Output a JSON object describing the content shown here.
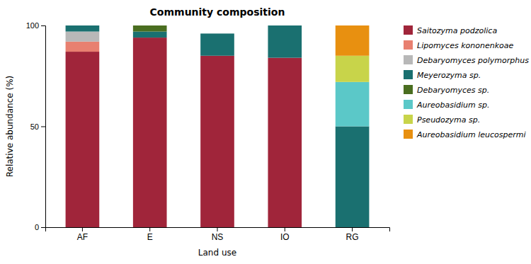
{
  "chart_data": {
    "type": "bar",
    "stacked": true,
    "title": "Community composition",
    "x_label": "Land use",
    "y_label": "Relative abundance (%)",
    "categories": [
      "AF",
      "E",
      "NS",
      "IO",
      "RG"
    ],
    "series": [
      {
        "name": "Saitozyma podzolica",
        "color": "#a0253a",
        "values": [
          87,
          94,
          85,
          84,
          0
        ]
      },
      {
        "name": "Lipomyces kononenkoae",
        "color": "#e88070",
        "values": [
          5,
          0,
          0,
          0,
          0
        ]
      },
      {
        "name": "Debaryomyces polymorphus",
        "color": "#b8b8b8",
        "values": [
          5,
          0,
          0,
          0,
          0
        ]
      },
      {
        "name": "Meyerozyma sp.",
        "color": "#1a7070",
        "values": [
          3,
          3,
          11,
          16,
          50
        ]
      },
      {
        "name": "Debaryomyces sp.",
        "color": "#4a6e20",
        "values": [
          0,
          3,
          0,
          0,
          0
        ]
      },
      {
        "name": "Aureobasidium sp.",
        "color": "#5bc8c8",
        "values": [
          0,
          0,
          0,
          0,
          22
        ]
      },
      {
        "name": "Pseudozyma sp.",
        "color": "#c8d44a",
        "values": [
          0,
          0,
          0,
          0,
          13
        ]
      },
      {
        "name": "Aureobasidium leucospermi",
        "color": "#e89010",
        "values": [
          0,
          0,
          0,
          0,
          15
        ]
      }
    ],
    "ylim": [
      0,
      100
    ],
    "yticks": [
      0,
      50,
      100
    ],
    "grid": false,
    "legend": "right"
  }
}
